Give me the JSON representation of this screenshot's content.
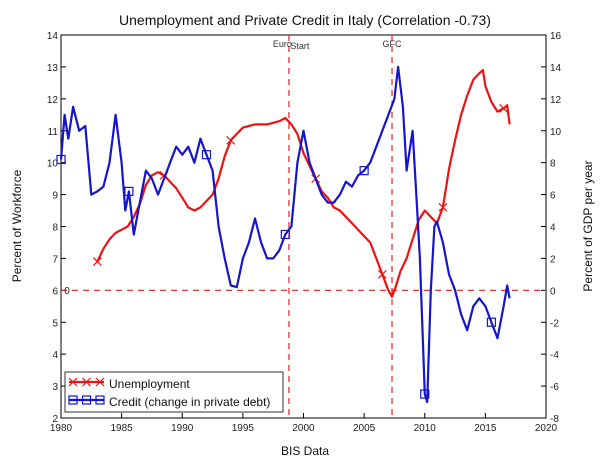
{
  "chart_data": {
    "type": "line",
    "title": "Unemployment and Private Credit in Italy (Correlation -0.73)",
    "xlabel": "BIS Data",
    "ylabel_left": "Percent of Workforce",
    "ylabel_right": "Percent of GDP per year",
    "xlim": [
      1980,
      2020
    ],
    "ylim_left": [
      2,
      14
    ],
    "ylim_right": [
      -8,
      16
    ],
    "x_ticks": [
      "1980",
      "1985",
      "1990",
      "1995",
      "2000",
      "2005",
      "2010",
      "2015",
      "2020"
    ],
    "y_left_ticks": [
      "2",
      "3",
      "4",
      "5",
      "6",
      "7",
      "8",
      "9",
      "10",
      "11",
      "12",
      "13",
      "14"
    ],
    "y_right_ticks": [
      "-8",
      "-6",
      "-4",
      "-2",
      "0",
      "2",
      "4",
      "6",
      "8",
      "10",
      "12",
      "14",
      "16"
    ],
    "zero_label": "0",
    "annotations": [
      {
        "label": "Euro",
        "x": 1998.8
      },
      {
        "label": "Start",
        "x": 1999.0
      },
      {
        "label": "GFC",
        "x": 2007.3
      }
    ],
    "grid": false,
    "legend_position": "bottom-left",
    "series": [
      {
        "name": "Unemployment",
        "axis": "left",
        "color": "#ee1111",
        "marker": "x",
        "points": [
          [
            1983.0,
            6.9
          ],
          [
            1983.5,
            7.3
          ],
          [
            1984.0,
            7.6
          ],
          [
            1984.5,
            7.8
          ],
          [
            1985.0,
            7.9
          ],
          [
            1985.5,
            8.0
          ],
          [
            1986.0,
            8.3
          ],
          [
            1986.5,
            8.7
          ],
          [
            1987.0,
            9.3
          ],
          [
            1987.5,
            9.6
          ],
          [
            1988.0,
            9.7
          ],
          [
            1988.5,
            9.6
          ],
          [
            1989.0,
            9.4
          ],
          [
            1989.5,
            9.2
          ],
          [
            1990.0,
            8.9
          ],
          [
            1990.5,
            8.6
          ],
          [
            1991.0,
            8.5
          ],
          [
            1991.5,
            8.6
          ],
          [
            1992.0,
            8.8
          ],
          [
            1992.5,
            9.0
          ],
          [
            1993.0,
            9.5
          ],
          [
            1993.5,
            10.2
          ],
          [
            1994.0,
            10.7
          ],
          [
            1994.5,
            10.9
          ],
          [
            1995.0,
            11.1
          ],
          [
            1996.0,
            11.2
          ],
          [
            1997.0,
            11.2
          ],
          [
            1998.0,
            11.3
          ],
          [
            1998.5,
            11.4
          ],
          [
            1999.0,
            11.2
          ],
          [
            1999.5,
            10.9
          ],
          [
            2000.0,
            10.3
          ],
          [
            2000.5,
            9.9
          ],
          [
            2001.0,
            9.5
          ],
          [
            2001.5,
            9.1
          ],
          [
            2002.0,
            8.9
          ],
          [
            2002.5,
            8.6
          ],
          [
            2003.0,
            8.5
          ],
          [
            2003.5,
            8.3
          ],
          [
            2004.0,
            8.1
          ],
          [
            2004.5,
            7.9
          ],
          [
            2005.0,
            7.7
          ],
          [
            2005.5,
            7.5
          ],
          [
            2006.0,
            7.0
          ],
          [
            2006.5,
            6.5
          ],
          [
            2007.0,
            6.0
          ],
          [
            2007.3,
            5.8
          ],
          [
            2007.6,
            6.1
          ],
          [
            2008.0,
            6.6
          ],
          [
            2008.5,
            7.0
          ],
          [
            2009.0,
            7.6
          ],
          [
            2009.5,
            8.2
          ],
          [
            2010.0,
            8.5
          ],
          [
            2010.5,
            8.3
          ],
          [
            2011.0,
            8.1
          ],
          [
            2011.5,
            8.6
          ],
          [
            2012.0,
            9.8
          ],
          [
            2012.5,
            10.7
          ],
          [
            2013.0,
            11.5
          ],
          [
            2013.5,
            12.1
          ],
          [
            2014.0,
            12.6
          ],
          [
            2014.5,
            12.8
          ],
          [
            2014.8,
            12.9
          ],
          [
            2015.0,
            12.4
          ],
          [
            2015.5,
            11.9
          ],
          [
            2016.0,
            11.6
          ],
          [
            2016.5,
            11.7
          ],
          [
            2016.8,
            11.8
          ],
          [
            2017.0,
            11.2
          ]
        ]
      },
      {
        "name": "Credit (change in private debt)",
        "axis": "right",
        "color": "#1515cc",
        "marker": "square",
        "points": [
          [
            1980.0,
            8.2
          ],
          [
            1980.3,
            11.0
          ],
          [
            1980.6,
            9.5
          ],
          [
            1981.0,
            11.5
          ],
          [
            1981.5,
            10.0
          ],
          [
            1982.0,
            10.3
          ],
          [
            1982.5,
            6.0
          ],
          [
            1983.0,
            6.2
          ],
          [
            1983.5,
            6.5
          ],
          [
            1984.0,
            8.0
          ],
          [
            1984.5,
            11.0
          ],
          [
            1985.0,
            8.0
          ],
          [
            1985.3,
            5.0
          ],
          [
            1985.6,
            6.2
          ],
          [
            1986.0,
            3.5
          ],
          [
            1986.5,
            5.5
          ],
          [
            1987.0,
            7.5
          ],
          [
            1987.5,
            7.0
          ],
          [
            1988.0,
            6.0
          ],
          [
            1988.5,
            7.0
          ],
          [
            1989.0,
            8.0
          ],
          [
            1989.5,
            9.0
          ],
          [
            1990.0,
            8.5
          ],
          [
            1990.5,
            9.0
          ],
          [
            1991.0,
            8.0
          ],
          [
            1991.5,
            9.5
          ],
          [
            1992.0,
            8.5
          ],
          [
            1992.5,
            7.5
          ],
          [
            1993.0,
            4.0
          ],
          [
            1993.5,
            2.0
          ],
          [
            1994.0,
            0.3
          ],
          [
            1994.5,
            0.2
          ],
          [
            1995.0,
            2.0
          ],
          [
            1995.5,
            3.0
          ],
          [
            1996.0,
            4.5
          ],
          [
            1996.5,
            3.0
          ],
          [
            1997.0,
            2.0
          ],
          [
            1997.5,
            2.0
          ],
          [
            1998.0,
            2.5
          ],
          [
            1998.5,
            3.5
          ],
          [
            1999.0,
            4.0
          ],
          [
            1999.5,
            8.0
          ],
          [
            2000.0,
            10.0
          ],
          [
            2000.5,
            8.0
          ],
          [
            2001.0,
            7.0
          ],
          [
            2001.5,
            6.0
          ],
          [
            2002.0,
            5.5
          ],
          [
            2002.5,
            5.5
          ],
          [
            2003.0,
            6.0
          ],
          [
            2003.5,
            6.8
          ],
          [
            2004.0,
            6.5
          ],
          [
            2004.5,
            7.2
          ],
          [
            2005.0,
            7.5
          ],
          [
            2005.5,
            8.0
          ],
          [
            2006.0,
            9.0
          ],
          [
            2006.5,
            10.0
          ],
          [
            2007.0,
            11.0
          ],
          [
            2007.5,
            12.0
          ],
          [
            2007.8,
            14.0
          ],
          [
            2008.2,
            11.5
          ],
          [
            2008.5,
            7.5
          ],
          [
            2008.8,
            9.0
          ],
          [
            2009.0,
            10.0
          ],
          [
            2009.3,
            6.0
          ],
          [
            2009.6,
            2.0
          ],
          [
            2010.0,
            -6.5
          ],
          [
            2010.2,
            -7.0
          ],
          [
            2010.5,
            0.0
          ],
          [
            2010.8,
            4.0
          ],
          [
            2011.0,
            4.3
          ],
          [
            2011.5,
            3.0
          ],
          [
            2012.0,
            1.0
          ],
          [
            2012.5,
            0.0
          ],
          [
            2013.0,
            -1.5
          ],
          [
            2013.5,
            -2.5
          ],
          [
            2014.0,
            -1.0
          ],
          [
            2014.5,
            -0.5
          ],
          [
            2015.0,
            -1.0
          ],
          [
            2015.5,
            -2.0
          ],
          [
            2016.0,
            -3.0
          ],
          [
            2016.5,
            -1.0
          ],
          [
            2016.8,
            0.3
          ],
          [
            2017.0,
            -0.5
          ]
        ]
      }
    ]
  }
}
